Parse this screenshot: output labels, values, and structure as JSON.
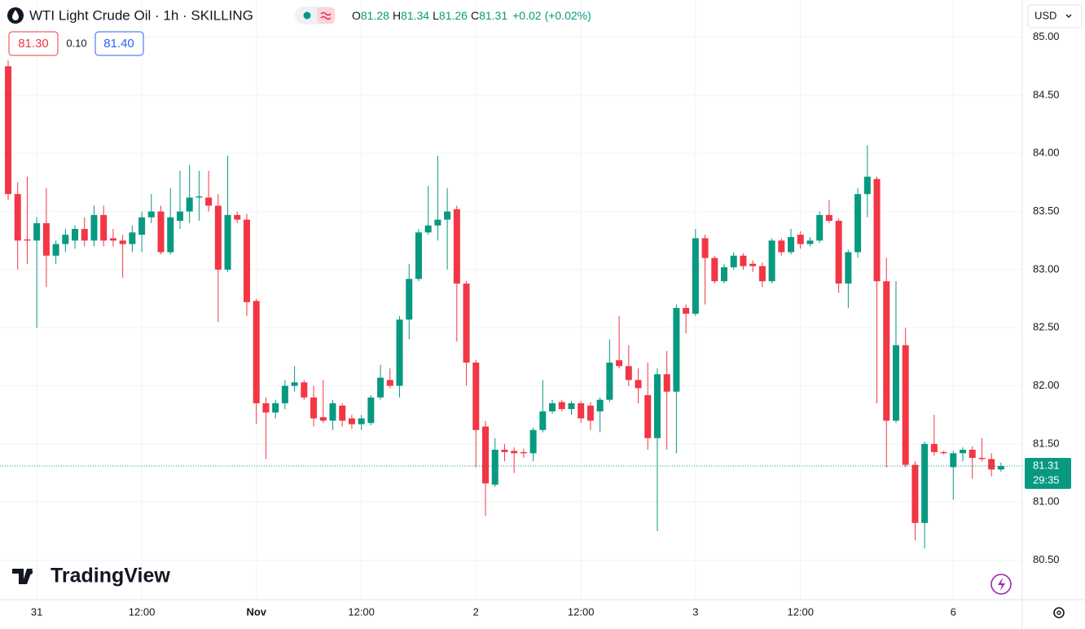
{
  "header": {
    "title": "WTI Light Crude Oil · 1h · SKILLING",
    "legend": [
      {
        "key": "O",
        "value": 81.28
      },
      {
        "key": "H",
        "value": 81.34
      },
      {
        "key": "L",
        "value": 81.26
      },
      {
        "key": "C",
        "value": 81.31
      }
    ],
    "change": "+0.02",
    "change_pct": "(+0.02%)",
    "bid": "81.30",
    "spread": "0.10",
    "ask": "81.40",
    "currency": "USD",
    "brand": "TradingView"
  },
  "chart_data": {
    "type": "candlestick",
    "up_color": "#089981",
    "down_color": "#f23645",
    "categories": [
      null,
      null,
      null,
      "31",
      null,
      null,
      null,
      null,
      null,
      null,
      null,
      null,
      null,
      null,
      "12:00",
      null,
      null,
      null,
      null,
      null,
      null,
      null,
      null,
      null,
      null,
      null,
      "Nov",
      null,
      null,
      null,
      null,
      null,
      null,
      null,
      null,
      null,
      null,
      "12:00",
      null,
      null,
      null,
      null,
      null,
      null,
      null,
      null,
      null,
      null,
      null,
      "2",
      null,
      null,
      null,
      null,
      null,
      null,
      null,
      null,
      null,
      null,
      "12:00",
      null,
      null,
      null,
      null,
      null,
      null,
      null,
      null,
      null,
      null,
      null,
      "3",
      null,
      null,
      null,
      null,
      null,
      null,
      null,
      null,
      null,
      null,
      "12:00",
      null,
      null,
      null,
      null,
      null,
      null,
      null,
      null,
      null,
      null,
      null,
      null,
      null,
      null,
      null,
      "6",
      null,
      null,
      null,
      null,
      null
    ],
    "open": [
      84.75,
      83.65,
      83.26,
      83.25,
      83.4,
      83.12,
      83.22,
      83.25,
      83.35,
      83.25,
      83.47,
      83.27,
      83.25,
      83.22,
      83.3,
      83.45,
      83.5,
      83.15,
      83.42,
      83.5,
      83.62,
      83.62,
      83.55,
      83.0,
      83.47,
      83.43,
      82.73,
      81.85,
      81.77,
      81.85,
      82.0,
      82.03,
      81.9,
      81.73,
      81.7,
      81.83,
      81.72,
      81.67,
      81.68,
      81.9,
      82.05,
      82.0,
      82.57,
      82.92,
      83.32,
      83.38,
      83.43,
      83.52,
      82.88,
      82.2,
      81.65,
      81.15,
      81.45,
      81.44,
      81.43,
      81.42,
      81.62,
      81.78,
      81.86,
      81.8,
      81.85,
      81.83,
      81.78,
      81.88,
      82.22,
      82.17,
      82.05,
      81.92,
      81.55,
      82.1,
      81.95,
      82.67,
      82.62,
      83.27,
      83.1,
      82.9,
      83.02,
      83.12,
      83.05,
      83.03,
      82.9,
      83.25,
      83.15,
      83.3,
      83.22,
      83.25,
      83.47,
      83.42,
      82.88,
      83.15,
      83.65,
      83.78,
      82.9,
      81.7,
      82.35,
      81.32,
      80.82,
      81.5,
      81.43,
      81.3,
      81.42,
      81.45,
      81.38,
      81.37,
      81.28
    ],
    "high": [
      84.8,
      83.75,
      83.8,
      83.45,
      83.7,
      83.25,
      83.35,
      83.38,
      83.45,
      83.55,
      83.55,
      83.35,
      83.3,
      83.38,
      83.5,
      83.65,
      83.55,
      83.7,
      83.85,
      83.9,
      83.85,
      83.85,
      83.65,
      83.98,
      83.5,
      83.48,
      82.75,
      81.9,
      81.88,
      82.05,
      82.17,
      82.05,
      82.0,
      82.05,
      81.88,
      81.85,
      81.75,
      81.75,
      81.92,
      82.18,
      82.15,
      82.6,
      83.05,
      83.35,
      83.72,
      83.98,
      83.7,
      83.55,
      82.9,
      82.22,
      81.7,
      81.55,
      81.5,
      81.47,
      81.46,
      81.64,
      82.05,
      81.88,
      81.88,
      81.87,
      81.87,
      81.86,
      81.9,
      82.4,
      82.6,
      82.35,
      82.15,
      82.2,
      82.15,
      82.3,
      82.7,
      82.7,
      83.35,
      83.3,
      83.12,
      83.05,
      83.15,
      83.14,
      83.08,
      83.06,
      83.27,
      83.27,
      83.35,
      83.33,
      83.28,
      83.5,
      83.6,
      83.44,
      83.17,
      83.7,
      84.07,
      83.8,
      83.1,
      82.9,
      82.5,
      81.35,
      81.52,
      81.75,
      81.44,
      81.44,
      81.47,
      81.48,
      81.55,
      81.42,
      81.34
    ],
    "low": [
      83.6,
      83.0,
      83.05,
      82.5,
      82.85,
      83.05,
      83.15,
      83.18,
      83.2,
      83.2,
      83.2,
      83.2,
      82.93,
      83.15,
      83.15,
      83.4,
      83.13,
      83.13,
      83.35,
      83.4,
      83.42,
      83.5,
      82.55,
      82.98,
      83.4,
      82.6,
      81.67,
      81.37,
      81.72,
      81.8,
      81.95,
      81.88,
      81.65,
      81.68,
      81.62,
      81.65,
      81.63,
      81.62,
      81.66,
      81.88,
      81.98,
      81.9,
      82.4,
      82.9,
      83.3,
      83.25,
      83.0,
      82.38,
      82.0,
      81.3,
      80.88,
      81.13,
      81.35,
      81.25,
      81.38,
      81.35,
      81.6,
      81.76,
      81.78,
      81.75,
      81.68,
      81.62,
      81.6,
      81.86,
      82.15,
      82.0,
      81.85,
      81.45,
      80.75,
      81.45,
      81.42,
      82.45,
      82.6,
      82.7,
      82.88,
      82.88,
      83.0,
      83.0,
      82.98,
      82.85,
      82.88,
      83.12,
      83.13,
      83.18,
      83.2,
      83.23,
      83.4,
      82.8,
      82.67,
      83.1,
      83.45,
      81.85,
      81.3,
      81.68,
      81.3,
      80.67,
      80.6,
      81.4,
      81.41,
      81.02,
      81.35,
      81.2,
      81.35,
      81.22,
      81.26
    ],
    "close": [
      83.65,
      83.25,
      83.25,
      83.4,
      83.12,
      83.22,
      83.3,
      83.35,
      83.25,
      83.47,
      83.25,
      83.25,
      83.22,
      83.32,
      83.45,
      83.5,
      83.15,
      83.45,
      83.5,
      83.62,
      83.63,
      83.55,
      83.0,
      83.47,
      83.43,
      82.72,
      81.85,
      81.77,
      81.85,
      82.0,
      82.03,
      81.9,
      81.72,
      81.7,
      81.85,
      81.7,
      81.67,
      81.72,
      81.9,
      82.07,
      82.0,
      82.57,
      82.92,
      83.32,
      83.38,
      83.43,
      83.5,
      82.88,
      82.2,
      81.62,
      81.16,
      81.45,
      81.43,
      81.42,
      81.42,
      81.62,
      81.78,
      81.85,
      81.8,
      81.85,
      81.72,
      81.7,
      81.88,
      82.2,
      82.17,
      82.05,
      81.98,
      81.55,
      82.1,
      81.95,
      82.67,
      82.62,
      83.27,
      83.1,
      82.9,
      83.02,
      83.12,
      83.03,
      83.03,
      82.9,
      83.25,
      83.15,
      83.28,
      83.22,
      83.25,
      83.47,
      83.42,
      82.88,
      83.15,
      83.65,
      83.8,
      82.9,
      81.7,
      82.35,
      81.32,
      80.82,
      81.5,
      81.43,
      81.42,
      81.42,
      81.45,
      81.38,
      81.37,
      81.28,
      81.31
    ],
    "ylim": [
      80.16,
      85.32
    ],
    "yticks": [
      {
        "value": 80.5,
        "label": "80.50"
      },
      {
        "value": 81,
        "label": "81.00"
      },
      {
        "value": 81.5,
        "label": "81.50"
      },
      {
        "value": 82,
        "label": "82.00"
      },
      {
        "value": 82.5,
        "label": "82.50"
      },
      {
        "value": 83,
        "label": "83.00"
      },
      {
        "value": 83.5,
        "label": "83.50"
      },
      {
        "value": 84,
        "label": "84.00"
      },
      {
        "value": 84.5,
        "label": "84.50"
      },
      {
        "value": 85,
        "label": "85.00"
      }
    ],
    "grid": true,
    "current_price": 81.31,
    "countdown": "29:35"
  }
}
